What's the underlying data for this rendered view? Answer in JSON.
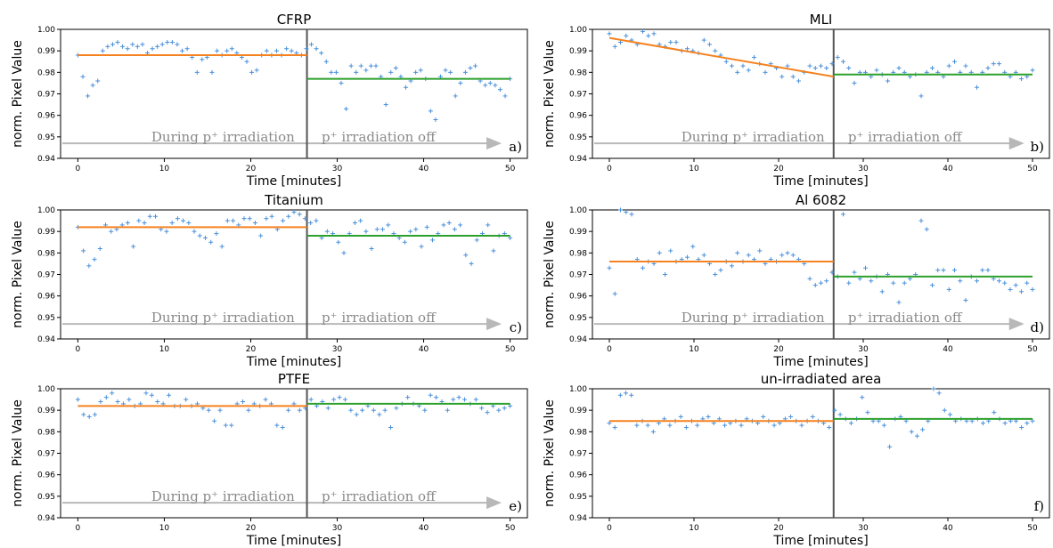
{
  "chart_data": [
    {
      "type": "scatter",
      "title": "CFRP",
      "xlabel": "Time [minutes]",
      "ylabel": "norm. Pixel Value",
      "xlim": [
        -2,
        52
      ],
      "ylim": [
        0.94,
        1.0
      ],
      "xticks": [
        "0",
        "10",
        "20",
        "30",
        "40",
        "50"
      ],
      "yticks": [
        "0.94",
        "0.95",
        "0.96",
        "0.97",
        "0.98",
        "0.99",
        "1.00"
      ],
      "grid": false,
      "divider_x": 26.5,
      "annotation_left": "During p⁺ irradiation",
      "annotation_right": "p⁺ irradiation off",
      "panel_label": "a)",
      "series": [
        {
          "name": "",
          "y": [
            0.988,
            0.978,
            0.969,
            0.974,
            0.976,
            0.99,
            0.992,
            0.993,
            0.994,
            0.992,
            0.991,
            0.993,
            0.992,
            0.993,
            0.989,
            0.991,
            0.992,
            0.993,
            0.994,
            0.994,
            0.993,
            0.99,
            0.991,
            0.987,
            0.98,
            0.986,
            0.987,
            0.98,
            0.99,
            0.988,
            0.99,
            0.991,
            0.989,
            0.987,
            0.985,
            0.98,
            0.981,
            0.988,
            0.99,
            0.988,
            0.99,
            0.988,
            0.991,
            0.99,
            0.989,
            0.988,
            0.991,
            0.993,
            0.991,
            0.989,
            0.985,
            0.98,
            0.98,
            0.975,
            0.963,
            0.983,
            0.98,
            0.983,
            0.981,
            0.983,
            0.983,
            0.978,
            0.965,
            0.98,
            0.982,
            0.978,
            0.973,
            0.976,
            0.98,
            0.981,
            0.977,
            0.962,
            0.958,
            0.978,
            0.981,
            0.98,
            0.969,
            0.975,
            0.98,
            0.982,
            0.983,
            0.976,
            0.974,
            0.975,
            0.974,
            0.972,
            0.969,
            0.977
          ]
        }
      ],
      "fit_before": {
        "x": [
          0,
          26.5
        ],
        "y": [
          0.988,
          0.988
        ]
      },
      "fit_after": {
        "x": [
          26.5,
          50
        ],
        "y": [
          0.977,
          0.977
        ]
      }
    },
    {
      "type": "scatter",
      "title": "MLI",
      "xlabel": "Time [minutes]",
      "ylabel": "norm. Pixel Value",
      "xlim": [
        -2,
        52
      ],
      "ylim": [
        0.94,
        1.0
      ],
      "xticks": [
        "0",
        "10",
        "20",
        "30",
        "40",
        "50"
      ],
      "yticks": [
        "0.94",
        "0.95",
        "0.96",
        "0.97",
        "0.98",
        "0.99",
        "1.00"
      ],
      "grid": false,
      "divider_x": 26.5,
      "annotation_left": "During p⁺ irradiation",
      "annotation_right": "p⁺ irradiation off",
      "panel_label": "b)",
      "series": [
        {
          "name": "",
          "y": [
            0.998,
            0.992,
            0.994,
            0.997,
            0.995,
            0.993,
            0.999,
            0.997,
            0.998,
            0.993,
            0.992,
            0.994,
            0.994,
            0.99,
            0.991,
            0.99,
            0.989,
            0.995,
            0.993,
            0.99,
            0.988,
            0.985,
            0.983,
            0.98,
            0.983,
            0.981,
            0.987,
            0.984,
            0.98,
            0.984,
            0.982,
            0.978,
            0.983,
            0.978,
            0.976,
            0.98,
            0.983,
            0.982,
            0.983,
            0.982,
            0.984,
            0.987,
            0.985,
            0.982,
            0.975,
            0.98,
            0.98,
            0.978,
            0.981,
            0.979,
            0.976,
            0.98,
            0.982,
            0.98,
            0.978,
            0.979,
            0.969,
            0.98,
            0.982,
            0.98,
            0.978,
            0.983,
            0.985,
            0.98,
            0.983,
            0.98,
            0.973,
            0.98,
            0.982,
            0.984,
            0.984,
            0.98,
            0.978,
            0.98,
            0.977,
            0.978,
            0.981
          ]
        }
      ],
      "fit_before": {
        "x": [
          0,
          26.5
        ],
        "y": [
          0.996,
          0.978
        ]
      },
      "fit_after": {
        "x": [
          26.5,
          50
        ],
        "y": [
          0.979,
          0.979
        ]
      }
    },
    {
      "type": "scatter",
      "title": "Titanium",
      "xlabel": "Time [minutes]",
      "ylabel": "norm. Pixel Value",
      "xlim": [
        -2,
        52
      ],
      "ylim": [
        0.94,
        1.0
      ],
      "xticks": [
        "0",
        "10",
        "20",
        "30",
        "40",
        "50"
      ],
      "yticks": [
        "0.94",
        "0.95",
        "0.96",
        "0.97",
        "0.98",
        "0.99",
        "1.00"
      ],
      "grid": false,
      "divider_x": 26.5,
      "annotation_left": "During p⁺ irradiation",
      "annotation_right": "p⁺ irradiation off",
      "panel_label": "c)",
      "series": [
        {
          "name": "",
          "y": [
            0.992,
            0.981,
            0.974,
            0.977,
            0.982,
            0.993,
            0.99,
            0.991,
            0.993,
            0.994,
            0.983,
            0.995,
            0.994,
            0.997,
            0.997,
            0.991,
            0.99,
            0.994,
            0.996,
            0.995,
            0.994,
            0.99,
            0.988,
            0.987,
            0.985,
            0.989,
            0.983,
            0.995,
            0.995,
            0.993,
            0.996,
            0.996,
            0.994,
            0.988,
            0.996,
            0.997,
            0.991,
            0.995,
            0.997,
            0.999,
            0.998,
            0.996,
            0.994,
            0.995,
            0.987,
            0.99,
            0.989,
            0.985,
            0.98,
            0.989,
            0.994,
            0.995,
            0.99,
            0.982,
            0.991,
            0.991,
            0.993,
            0.989,
            0.987,
            0.985,
            0.99,
            0.991,
            0.983,
            0.992,
            0.986,
            0.989,
            0.993,
            0.994,
            0.991,
            0.993,
            0.979,
            0.975,
            0.986,
            0.989,
            0.993,
            0.981,
            0.988,
            0.989,
            0.987
          ]
        }
      ],
      "fit_before": {
        "x": [
          0,
          26.5
        ],
        "y": [
          0.992,
          0.992
        ]
      },
      "fit_after": {
        "x": [
          26.5,
          50
        ],
        "y": [
          0.988,
          0.988
        ]
      }
    },
    {
      "type": "scatter",
      "title": "Al 6082",
      "xlabel": "Time [minutes]",
      "ylabel": "norm. Pixel Value",
      "xlim": [
        -2,
        52
      ],
      "ylim": [
        0.94,
        1.0
      ],
      "xticks": [
        "0",
        "10",
        "20",
        "30",
        "40",
        "50"
      ],
      "yticks": [
        "0.94",
        "0.95",
        "0.96",
        "0.97",
        "0.98",
        "0.99",
        "1.00"
      ],
      "grid": false,
      "divider_x": 26.5,
      "annotation_left": "During p⁺ irradiation",
      "annotation_right": "p⁺ irradiation off",
      "panel_label": "d)",
      "series": [
        {
          "name": "",
          "y": [
            0.973,
            0.961,
            1.0,
            0.999,
            0.998,
            0.977,
            0.973,
            0.976,
            0.975,
            0.98,
            0.97,
            0.981,
            0.976,
            0.977,
            0.978,
            0.983,
            0.977,
            0.979,
            0.975,
            0.97,
            0.972,
            0.976,
            0.974,
            0.98,
            0.976,
            0.979,
            0.977,
            0.981,
            0.975,
            0.977,
            0.976,
            0.979,
            0.98,
            0.979,
            0.977,
            0.975,
            0.968,
            0.965,
            0.966,
            0.967,
            0.971,
            0.969,
            0.998,
            0.966,
            0.971,
            0.968,
            0.973,
            0.967,
            0.969,
            0.962,
            0.97,
            0.966,
            0.957,
            0.966,
            0.968,
            0.97,
            0.995,
            0.991,
            0.965,
            0.972,
            0.972,
            0.963,
            0.972,
            0.967,
            0.958,
            0.969,
            0.967,
            0.972,
            0.972,
            0.968,
            0.967,
            0.966,
            0.963,
            0.965,
            0.962,
            0.966,
            0.963
          ]
        }
      ],
      "fit_before": {
        "x": [
          0,
          26.5
        ],
        "y": [
          0.976,
          0.976
        ]
      },
      "fit_after": {
        "x": [
          26.5,
          50
        ],
        "y": [
          0.969,
          0.969
        ]
      }
    },
    {
      "type": "scatter",
      "title": "PTFE",
      "xlabel": "Time [minutes]",
      "ylabel": "norm. Pixel Value",
      "xlim": [
        -2,
        52
      ],
      "ylim": [
        0.94,
        1.0
      ],
      "xticks": [
        "0",
        "10",
        "20",
        "30",
        "40",
        "50"
      ],
      "yticks": [
        "0.94",
        "0.95",
        "0.96",
        "0.97",
        "0.98",
        "0.99",
        "1.00"
      ],
      "grid": false,
      "divider_x": 26.5,
      "annotation_left": "During p⁺ irradiation",
      "annotation_right": "p⁺ irradiation off",
      "panel_label": "e)",
      "series": [
        {
          "name": "",
          "y": [
            0.995,
            0.988,
            0.987,
            0.988,
            0.994,
            0.996,
            0.998,
            0.994,
            0.993,
            0.995,
            0.992,
            0.993,
            0.998,
            0.997,
            0.994,
            0.993,
            0.997,
            0.992,
            0.992,
            0.995,
            0.992,
            0.993,
            0.991,
            0.99,
            0.985,
            0.99,
            0.983,
            0.983,
            0.993,
            0.994,
            0.99,
            0.993,
            0.992,
            0.995,
            0.993,
            0.983,
            0.982,
            0.99,
            0.993,
            0.99,
            0.991,
            0.995,
            0.992,
            0.994,
            0.991,
            0.995,
            0.996,
            0.995,
            0.99,
            0.988,
            0.99,
            0.992,
            0.99,
            0.988,
            0.99,
            0.982,
            0.991,
            0.993,
            0.996,
            0.993,
            0.992,
            0.99,
            0.997,
            0.996,
            0.994,
            0.99,
            0.995,
            0.996,
            0.995,
            0.993,
            0.995,
            0.991,
            0.989,
            0.992,
            0.99,
            0.991,
            0.992
          ]
        }
      ],
      "fit_before": {
        "x": [
          0,
          26.5
        ],
        "y": [
          0.992,
          0.992
        ]
      },
      "fit_after": {
        "x": [
          26.5,
          50
        ],
        "y": [
          0.993,
          0.993
        ]
      }
    },
    {
      "type": "scatter",
      "title": "un-irradiated area",
      "xlabel": "Time [minutes]",
      "ylabel": "norm. Pixel Value",
      "xlim": [
        -2,
        52
      ],
      "ylim": [
        0.94,
        1.0
      ],
      "xticks": [
        "0",
        "10",
        "20",
        "30",
        "40",
        "50"
      ],
      "yticks": [
        "0.94",
        "0.95",
        "0.96",
        "0.97",
        "0.98",
        "0.99",
        "1.00"
      ],
      "grid": false,
      "divider_x": 26.5,
      "annotation_left": "",
      "annotation_right": "",
      "panel_label": "f)",
      "series": [
        {
          "name": "",
          "y": [
            0.984,
            0.982,
            0.997,
            0.998,
            0.997,
            0.983,
            0.985,
            0.983,
            0.98,
            0.984,
            0.986,
            0.983,
            0.985,
            0.987,
            0.982,
            0.985,
            0.983,
            0.986,
            0.987,
            0.984,
            0.986,
            0.983,
            0.984,
            0.985,
            0.983,
            0.986,
            0.985,
            0.984,
            0.987,
            0.985,
            0.983,
            0.984,
            0.986,
            0.987,
            0.985,
            0.983,
            0.985,
            0.987,
            0.985,
            0.984,
            0.982,
            0.99,
            0.988,
            0.986,
            0.984,
            0.986,
            0.996,
            0.989,
            0.985,
            0.985,
            0.983,
            0.973,
            0.986,
            0.987,
            0.985,
            0.98,
            0.978,
            0.981,
            0.985,
            1.0,
            0.998,
            0.99,
            0.988,
            0.985,
            0.986,
            0.985,
            0.985,
            0.986,
            0.984,
            0.985,
            0.989,
            0.986,
            0.984,
            0.985,
            0.985,
            0.982,
            0.984,
            0.985
          ]
        }
      ],
      "fit_before": {
        "x": [
          0,
          26.5
        ],
        "y": [
          0.985,
          0.985
        ]
      },
      "fit_after": {
        "x": [
          26.5,
          50
        ],
        "y": [
          0.986,
          0.986
        ]
      }
    }
  ]
}
